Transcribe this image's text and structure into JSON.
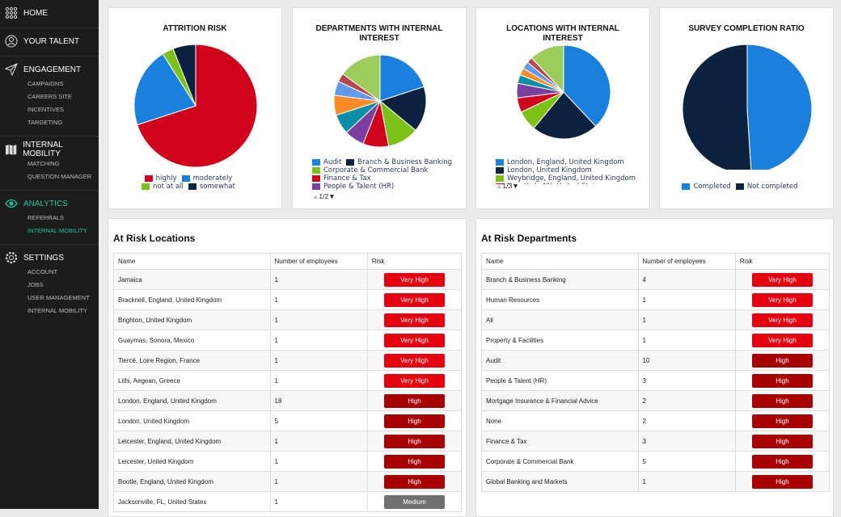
{
  "sidebar": {
    "home": "HOME",
    "talent": "YOUR TALENT",
    "engagement": {
      "label": "ENGAGEMENT",
      "items": [
        "CAMPAIGNS",
        "CAREERS SITE",
        "INCENTIVES",
        "TARGETING"
      ]
    },
    "mobility": {
      "label": "INTERNAL MOBILITY",
      "items": [
        "MATCHING",
        "QUESTION MANAGER"
      ]
    },
    "analytics": {
      "label": "ANALYTICS",
      "items": [
        "REFERRALS",
        "INTERNAL MOBILITY"
      ]
    },
    "settings": {
      "label": "SETTINGS",
      "items": [
        "ACCOUNT",
        "JOBS",
        "USER MANAGEMENT",
        "INTERNAL MOBILITY"
      ]
    }
  },
  "colors": {
    "accent": "#1fc5a5",
    "very_high": "#e5000f",
    "high": "#a80000",
    "medium": "#707070"
  },
  "chart_data": [
    {
      "type": "pie",
      "title": "ATTRITION RISK",
      "labels": [
        "highly",
        "moderately",
        "not at all",
        "somewhat"
      ],
      "values": [
        70,
        21,
        3,
        6
      ],
      "colors": [
        "#d0021b",
        "#1a7fdd",
        "#7cc118",
        "#0c2340"
      ]
    },
    {
      "type": "pie",
      "title": "DEPARTMENTS WITH INTERNAL INTEREST",
      "labels": [
        "Audit",
        "Branch & Business Banking",
        "Corporate & Commercial Bank",
        "Finance & Tax",
        "People & Talent (HR)",
        "",
        "",
        "",
        "",
        ""
      ],
      "legend_count": 5,
      "values": [
        20,
        16,
        11,
        9,
        7,
        7,
        7,
        5,
        3,
        15
      ],
      "colors": [
        "#1a7fdd",
        "#0c2340",
        "#7cc118",
        "#d0021b",
        "#7b3fa0",
        "#0a8fa8",
        "#f98c26",
        "#5f9bea",
        "#b4464c",
        "#9ccc5a"
      ],
      "pager": "1/2"
    },
    {
      "type": "pie",
      "title": "LOCATIONS WITH INTERNAL INTEREST",
      "labels": [
        "London, England, United Kingdom",
        "London, United Kingdom",
        "Weybridge, England, United Kingdom",
        "New York, NY, United States",
        "",
        "",
        "",
        "",
        "",
        ""
      ],
      "legend_count": 4,
      "values": [
        38,
        23,
        7,
        5,
        5,
        3,
        2.5,
        2.5,
        2,
        12
      ],
      "colors": [
        "#1a7fdd",
        "#0c2340",
        "#7cc118",
        "#d0021b",
        "#7b3fa0",
        "#0a8fa8",
        "#f98c26",
        "#5f9bea",
        "#b4464c",
        "#9ccc5a"
      ],
      "pager": "1/3"
    },
    {
      "type": "pie",
      "title": "SURVEY COMPLETION RATIO",
      "labels": [
        "Completed",
        "Not completed"
      ],
      "values": [
        49,
        51
      ],
      "colors": [
        "#1a7fdd",
        "#0c2340"
      ]
    }
  ],
  "locations": {
    "title": "At Risk Locations",
    "headers": [
      "Name",
      "Number of employees",
      "Risk"
    ],
    "rows": [
      [
        "Jamaica",
        "1",
        "Very High"
      ],
      [
        "Bracknell, England, United Kingdom",
        "1",
        "Very High"
      ],
      [
        "Brighton, United Kingdom",
        "1",
        "Very High"
      ],
      [
        "Guaymas, Sonora, Mexico",
        "1",
        "Very High"
      ],
      [
        "Tiercé, Loire Region, France",
        "1",
        "Very High"
      ],
      [
        "Lithi, Aegean, Greece",
        "1",
        "Very High"
      ],
      [
        "London, England, United Kingdom",
        "18",
        "High"
      ],
      [
        "London, United Kingdom",
        "5",
        "High"
      ],
      [
        "Leicester, England, United Kingdom",
        "1",
        "High"
      ],
      [
        "Leicester, United Kingdom",
        "1",
        "High"
      ],
      [
        "Bootle, England, United Kingdom",
        "1",
        "High"
      ],
      [
        "Jacksonville, FL, United States",
        "1",
        "Medium"
      ]
    ]
  },
  "departments": {
    "title": "At Risk Departments",
    "headers": [
      "Name",
      "Number of employees",
      "Risk"
    ],
    "rows": [
      [
        "Branch & Business Banking",
        "4",
        "Very High"
      ],
      [
        "Human Resources",
        "1",
        "Very High"
      ],
      [
        "All",
        "1",
        "Very High"
      ],
      [
        "Property & Facilities",
        "1",
        "Very High"
      ],
      [
        "Audit",
        "10",
        "High"
      ],
      [
        "People & Talent (HR)",
        "3",
        "High"
      ],
      [
        "Mortgage Insurance & Financial Advice",
        "2",
        "High"
      ],
      [
        "None",
        "2",
        "High"
      ],
      [
        "Finance & Tax",
        "3",
        "High"
      ],
      [
        "Corporate & Commercial Bank",
        "5",
        "High"
      ],
      [
        "Global Banking and Markets",
        "1",
        "High"
      ]
    ]
  }
}
